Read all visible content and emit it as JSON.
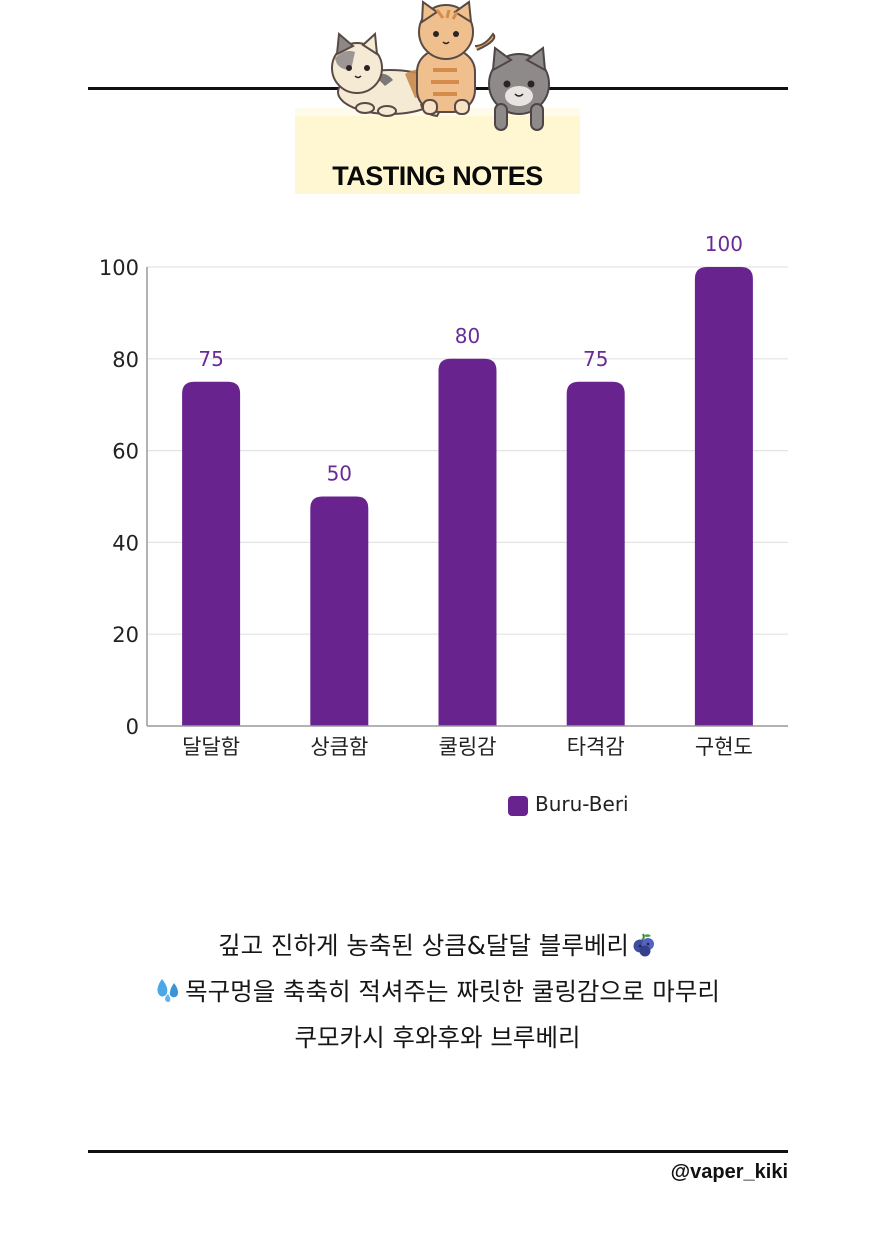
{
  "header": {
    "title": "TASTING NOTES"
  },
  "chart_data": {
    "type": "bar",
    "title": "",
    "xlabel": "",
    "ylabel": "",
    "categories": [
      "달달함",
      "상큼함",
      "쿨링감",
      "타격감",
      "구현도"
    ],
    "series": [
      {
        "name": "Buru-Beri",
        "values": [
          75,
          50,
          80,
          75,
          100
        ],
        "color": "#68238f"
      }
    ],
    "ylim": [
      0,
      100
    ],
    "yticks": [
      "0",
      "20",
      "40",
      "60",
      "80",
      "100"
    ],
    "data_labels": [
      "75",
      "50",
      "80",
      "75",
      "100"
    ],
    "grid": true,
    "legend_position": "bottom-center"
  },
  "colors": {
    "bar": "#68238f",
    "data_label": "#6a2c94",
    "grid": "#e3e3e3",
    "axis": "#9a9a9a",
    "header_bg": "#fff6d2"
  },
  "caption": {
    "line1": "깊고 진하게 농축된 상큼&달달 블루베리",
    "line1_emoji": "blueberries-icon",
    "line2": "목구멍을 축축히 적셔주는 짜릿한 쿨링감으로 마무리",
    "line2_emoji": "sweat-droplets-icon",
    "line3": "쿠모카시 후와후와 브루베리"
  },
  "footer": {
    "handle": "@vaper_kiki"
  }
}
